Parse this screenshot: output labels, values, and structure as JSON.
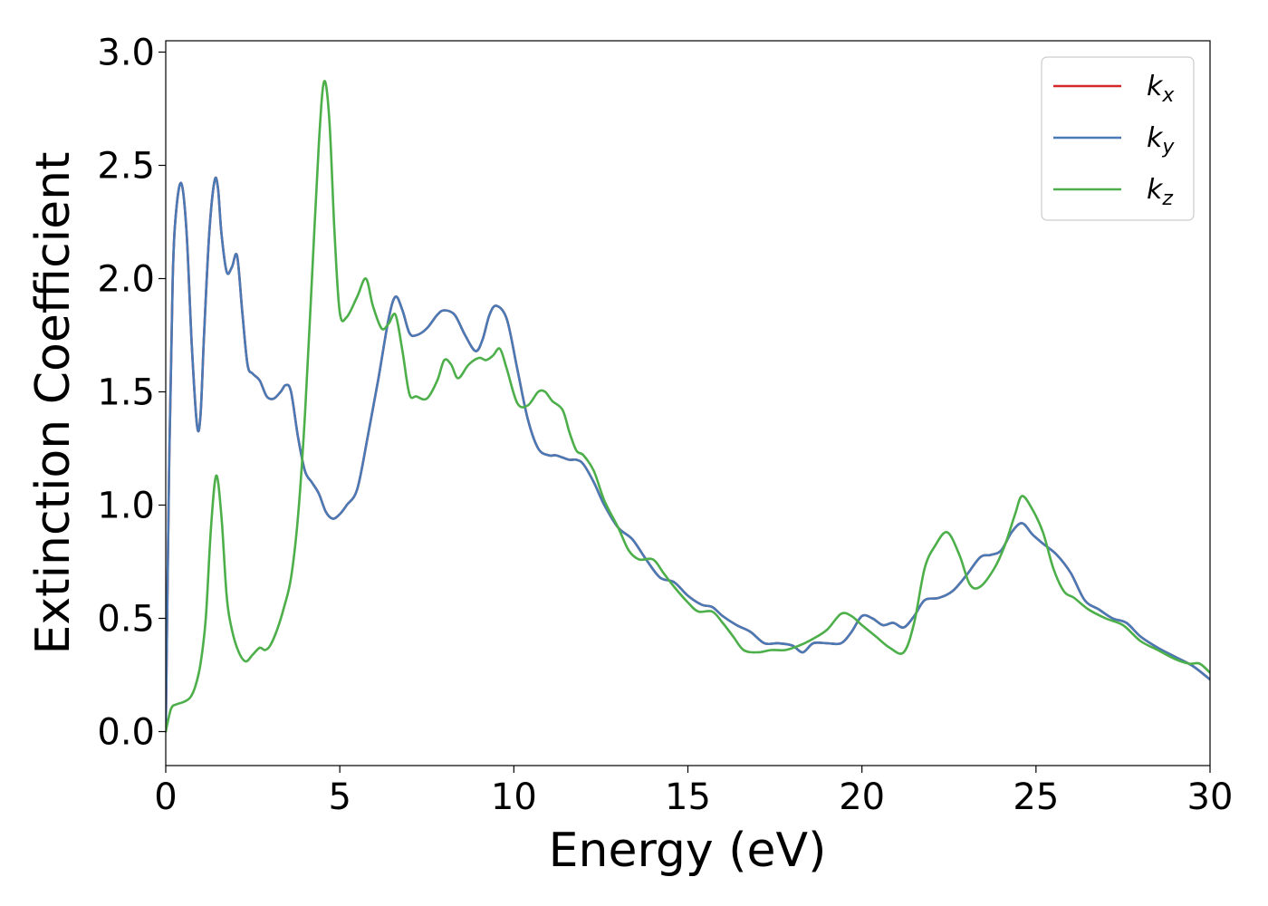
{
  "chart_data": {
    "type": "line",
    "xlabel": "Energy (eV)",
    "ylabel": "Extinction Coefficient",
    "xlim": [
      0,
      30
    ],
    "ylim": [
      -0.15,
      3.05
    ],
    "x_ticks": [
      0,
      5,
      10,
      15,
      20,
      25,
      30
    ],
    "x_tick_labels": [
      "0",
      "5",
      "10",
      "15",
      "20",
      "25",
      "30"
    ],
    "y_ticks": [
      0.0,
      0.5,
      1.0,
      1.5,
      2.0,
      2.5,
      3.0
    ],
    "y_tick_labels": [
      "0.0",
      "0.5",
      "1.0",
      "1.5",
      "2.0",
      "2.5",
      "3.0"
    ],
    "grid": false,
    "legend_position": "top-right",
    "series": [
      {
        "name": "k",
        "subscript": "x",
        "color": "#d62728",
        "x": [
          0,
          0.1,
          0.2,
          0.3,
          0.45,
          0.6,
          0.75,
          0.9,
          1.0,
          1.1,
          1.25,
          1.4,
          1.5,
          1.6,
          1.75,
          1.9,
          2.05,
          2.2,
          2.35,
          2.5,
          2.7,
          2.9,
          3.1,
          3.3,
          3.45,
          3.6,
          3.8,
          4.0,
          4.2,
          4.4,
          4.6,
          4.8,
          5.0,
          5.2,
          5.5,
          5.8,
          6.1,
          6.4,
          6.6,
          6.8,
          7.0,
          7.2,
          7.5,
          7.8,
          8.0,
          8.3,
          8.6,
          8.9,
          9.1,
          9.3,
          9.5,
          9.8,
          10.1,
          10.4,
          10.7,
          11.0,
          11.2,
          11.4,
          11.6,
          11.8,
          12.0,
          12.3,
          12.6,
          13.0,
          13.4,
          13.8,
          14.2,
          14.6,
          15.0,
          15.4,
          15.7,
          16.0,
          16.4,
          16.8,
          17.2,
          17.6,
          18.0,
          18.3,
          18.6,
          19.0,
          19.4,
          19.7,
          20.0,
          20.3,
          20.6,
          20.9,
          21.2,
          21.5,
          21.8,
          22.2,
          22.6,
          23.0,
          23.4,
          23.7,
          24.0,
          24.3,
          24.6,
          24.9,
          25.2,
          25.6,
          26.0,
          26.4,
          26.8,
          27.2,
          27.6,
          28.0,
          28.5,
          29.0,
          29.5,
          30.0
        ],
        "y": [
          0.0,
          1.2,
          2.0,
          2.3,
          2.42,
          2.2,
          1.7,
          1.35,
          1.4,
          1.75,
          2.2,
          2.43,
          2.4,
          2.2,
          2.03,
          2.05,
          2.1,
          1.85,
          1.62,
          1.58,
          1.55,
          1.48,
          1.47,
          1.5,
          1.53,
          1.5,
          1.3,
          1.15,
          1.1,
          1.05,
          0.97,
          0.94,
          0.96,
          1.0,
          1.07,
          1.3,
          1.55,
          1.82,
          1.92,
          1.86,
          1.76,
          1.75,
          1.78,
          1.84,
          1.86,
          1.84,
          1.75,
          1.68,
          1.73,
          1.84,
          1.88,
          1.82,
          1.6,
          1.38,
          1.25,
          1.22,
          1.22,
          1.21,
          1.2,
          1.2,
          1.18,
          1.1,
          1.0,
          0.9,
          0.85,
          0.76,
          0.68,
          0.66,
          0.6,
          0.56,
          0.55,
          0.51,
          0.47,
          0.44,
          0.39,
          0.39,
          0.38,
          0.35,
          0.39,
          0.39,
          0.39,
          0.44,
          0.51,
          0.5,
          0.47,
          0.48,
          0.46,
          0.51,
          0.58,
          0.59,
          0.62,
          0.69,
          0.77,
          0.78,
          0.8,
          0.88,
          0.92,
          0.87,
          0.83,
          0.78,
          0.7,
          0.58,
          0.54,
          0.5,
          0.48,
          0.42,
          0.37,
          0.33,
          0.29,
          0.23
        ]
      },
      {
        "name": "k",
        "subscript": "y",
        "color": "#4a7ab5",
        "x": [
          0,
          0.1,
          0.2,
          0.3,
          0.45,
          0.6,
          0.75,
          0.9,
          1.0,
          1.1,
          1.25,
          1.4,
          1.5,
          1.6,
          1.75,
          1.9,
          2.05,
          2.2,
          2.35,
          2.5,
          2.7,
          2.9,
          3.1,
          3.3,
          3.45,
          3.6,
          3.8,
          4.0,
          4.2,
          4.4,
          4.6,
          4.8,
          5.0,
          5.2,
          5.5,
          5.8,
          6.1,
          6.4,
          6.6,
          6.8,
          7.0,
          7.2,
          7.5,
          7.8,
          8.0,
          8.3,
          8.6,
          8.9,
          9.1,
          9.3,
          9.5,
          9.8,
          10.1,
          10.4,
          10.7,
          11.0,
          11.2,
          11.4,
          11.6,
          11.8,
          12.0,
          12.3,
          12.6,
          13.0,
          13.4,
          13.8,
          14.2,
          14.6,
          15.0,
          15.4,
          15.7,
          16.0,
          16.4,
          16.8,
          17.2,
          17.6,
          18.0,
          18.3,
          18.6,
          19.0,
          19.4,
          19.7,
          20.0,
          20.3,
          20.6,
          20.9,
          21.2,
          21.5,
          21.8,
          22.2,
          22.6,
          23.0,
          23.4,
          23.7,
          24.0,
          24.3,
          24.6,
          24.9,
          25.2,
          25.6,
          26.0,
          26.4,
          26.8,
          27.2,
          27.6,
          28.0,
          28.5,
          29.0,
          29.5,
          30.0
        ],
        "y": [
          0.0,
          1.2,
          2.0,
          2.3,
          2.42,
          2.2,
          1.7,
          1.35,
          1.4,
          1.75,
          2.2,
          2.43,
          2.4,
          2.2,
          2.03,
          2.05,
          2.1,
          1.85,
          1.62,
          1.58,
          1.55,
          1.48,
          1.47,
          1.5,
          1.53,
          1.5,
          1.3,
          1.15,
          1.1,
          1.05,
          0.97,
          0.94,
          0.96,
          1.0,
          1.07,
          1.3,
          1.55,
          1.82,
          1.92,
          1.86,
          1.76,
          1.75,
          1.78,
          1.84,
          1.86,
          1.84,
          1.75,
          1.68,
          1.73,
          1.84,
          1.88,
          1.82,
          1.6,
          1.38,
          1.25,
          1.22,
          1.22,
          1.21,
          1.2,
          1.2,
          1.18,
          1.1,
          1.0,
          0.9,
          0.85,
          0.76,
          0.68,
          0.66,
          0.6,
          0.56,
          0.55,
          0.51,
          0.47,
          0.44,
          0.39,
          0.39,
          0.38,
          0.35,
          0.39,
          0.39,
          0.39,
          0.44,
          0.51,
          0.5,
          0.47,
          0.48,
          0.46,
          0.51,
          0.58,
          0.59,
          0.62,
          0.69,
          0.77,
          0.78,
          0.8,
          0.88,
          0.92,
          0.87,
          0.83,
          0.78,
          0.7,
          0.58,
          0.54,
          0.5,
          0.48,
          0.42,
          0.37,
          0.33,
          0.29,
          0.23
        ]
      },
      {
        "name": "k",
        "subscript": "z",
        "color": "#4daf4a",
        "x": [
          0,
          0.15,
          0.3,
          0.5,
          0.7,
          0.85,
          1.0,
          1.15,
          1.3,
          1.45,
          1.6,
          1.75,
          1.9,
          2.1,
          2.3,
          2.5,
          2.7,
          2.85,
          3.0,
          3.2,
          3.4,
          3.6,
          3.8,
          4.0,
          4.2,
          4.4,
          4.55,
          4.7,
          4.85,
          5.0,
          5.2,
          5.5,
          5.75,
          5.95,
          6.2,
          6.4,
          6.6,
          6.8,
          7.0,
          7.2,
          7.5,
          7.8,
          8.0,
          8.2,
          8.4,
          8.7,
          9.0,
          9.2,
          9.4,
          9.6,
          9.8,
          10.1,
          10.4,
          10.7,
          10.9,
          11.1,
          11.4,
          11.6,
          11.8,
          12.0,
          12.3,
          12.6,
          13.0,
          13.3,
          13.6,
          14.0,
          14.3,
          14.6,
          15.0,
          15.3,
          15.7,
          16.0,
          16.3,
          16.6,
          17.0,
          17.4,
          17.8,
          18.2,
          18.6,
          19.0,
          19.4,
          19.7,
          20.0,
          20.4,
          20.8,
          21.2,
          21.5,
          21.8,
          22.1,
          22.45,
          22.8,
          23.1,
          23.4,
          23.8,
          24.1,
          24.4,
          24.6,
          24.9,
          25.2,
          25.5,
          25.8,
          26.1,
          26.5,
          27.0,
          27.5,
          28.0,
          28.5,
          29.0,
          29.4,
          29.7,
          30.0
        ],
        "y": [
          0.0,
          0.1,
          0.12,
          0.13,
          0.15,
          0.2,
          0.3,
          0.5,
          0.9,
          1.13,
          0.95,
          0.6,
          0.45,
          0.35,
          0.31,
          0.34,
          0.37,
          0.36,
          0.38,
          0.45,
          0.55,
          0.68,
          0.95,
          1.4,
          2.0,
          2.6,
          2.87,
          2.7,
          2.2,
          1.85,
          1.83,
          1.92,
          2.0,
          1.88,
          1.78,
          1.8,
          1.84,
          1.68,
          1.49,
          1.48,
          1.47,
          1.55,
          1.64,
          1.62,
          1.56,
          1.62,
          1.65,
          1.64,
          1.66,
          1.69,
          1.6,
          1.45,
          1.44,
          1.5,
          1.5,
          1.46,
          1.42,
          1.32,
          1.24,
          1.22,
          1.15,
          1.02,
          0.9,
          0.8,
          0.76,
          0.76,
          0.7,
          0.64,
          0.57,
          0.53,
          0.53,
          0.48,
          0.42,
          0.36,
          0.35,
          0.36,
          0.36,
          0.38,
          0.41,
          0.45,
          0.52,
          0.51,
          0.47,
          0.42,
          0.37,
          0.35,
          0.48,
          0.72,
          0.82,
          0.88,
          0.78,
          0.65,
          0.64,
          0.72,
          0.82,
          0.96,
          1.04,
          0.98,
          0.88,
          0.72,
          0.62,
          0.59,
          0.54,
          0.5,
          0.47,
          0.4,
          0.36,
          0.32,
          0.3,
          0.3,
          0.26
        ]
      }
    ]
  }
}
